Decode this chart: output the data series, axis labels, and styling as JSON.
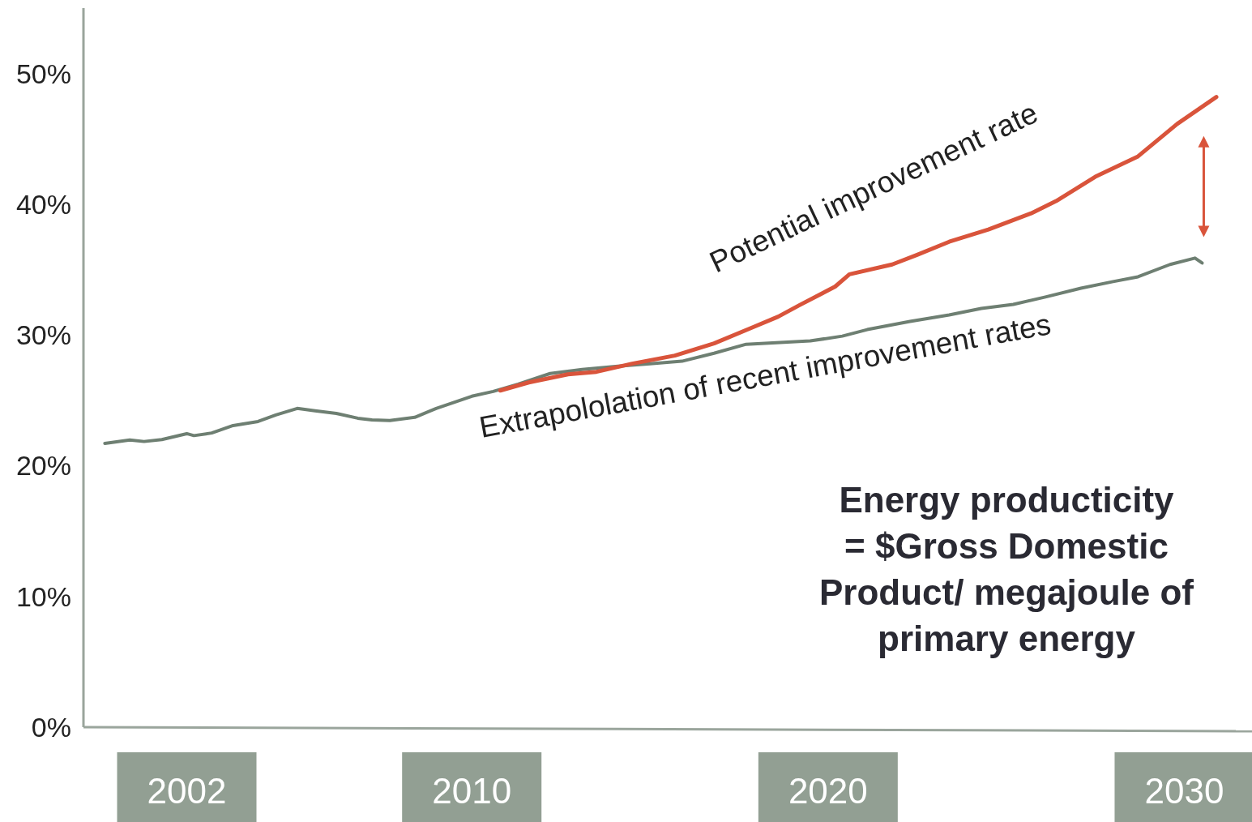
{
  "chart_data": {
    "type": "line",
    "xlim": [
      1999.1,
      2031.9
    ],
    "ylim": [
      0,
      55
    ],
    "xticks": [
      2002,
      2010,
      2020,
      2030
    ],
    "yticks": [
      {
        "value": 0,
        "label": "0%"
      },
      {
        "value": 10,
        "label": "10%"
      },
      {
        "value": 20,
        "label": "20%"
      },
      {
        "value": 30,
        "label": "30%"
      },
      {
        "value": 40,
        "label": "40%"
      },
      {
        "value": 50,
        "label": "50%"
      }
    ],
    "grid": false,
    "marker": "none",
    "line_style": "solid",
    "annotations": [
      "Energy producticity\n= $Gross Domestic\nProduct/ megajoule of\nprimary energy"
    ],
    "series": [
      {
        "name": "Extrapololation of recent improvement rates",
        "color": "#6e7f72",
        "x": [
          1999.7,
          2000.4,
          2000.8,
          2001.3,
          2002.0,
          2002.2,
          2002.7,
          2003.3,
          2004.0,
          2004.5,
          2005.1,
          2005.6,
          2006.2,
          2006.8,
          2007.2,
          2007.7,
          2008.4,
          2009.0,
          2010.0,
          2010.6,
          2011.3,
          2012.2,
          2013.1,
          2014.1,
          2015.0,
          2015.9,
          2016.8,
          2017.7,
          2019.5,
          2020.4,
          2021.1,
          2022.3,
          2023.4,
          2024.3,
          2025.2,
          2026.1,
          2027.1,
          2028.0,
          2028.7,
          2029.6,
          2030.3,
          2030.5
        ],
        "values": [
          21.7,
          21.96,
          21.85,
          22.0,
          22.45,
          22.3,
          22.5,
          23.07,
          23.38,
          23.88,
          24.38,
          24.2,
          24.0,
          23.63,
          23.5,
          23.45,
          23.7,
          24.38,
          25.31,
          25.68,
          26.24,
          27.05,
          27.36,
          27.61,
          27.8,
          27.99,
          28.6,
          29.29,
          29.54,
          29.91,
          30.41,
          31.03,
          31.53,
          32.03,
          32.34,
          32.9,
          33.58,
          34.08,
          34.45,
          35.39,
          35.88,
          35.5
        ]
      },
      {
        "name": "Potential improvement rate",
        "color": "#d9543b",
        "x": [
          2010.8,
          2011.6,
          2012.7,
          2013.5,
          2014.5,
          2015.7,
          2016.8,
          2017.9,
          2018.6,
          2019.2,
          2020.2,
          2020.6,
          2021.8,
          2022.5,
          2023.4,
          2024.5,
          2025.7,
          2026.4,
          2027.5,
          2028.7,
          2029.8,
          2030.9
        ],
        "values": [
          25.75,
          26.37,
          26.99,
          27.18,
          27.8,
          28.42,
          29.35,
          30.6,
          31.4,
          32.28,
          33.7,
          34.64,
          35.39,
          36.13,
          37.13,
          38.06,
          39.3,
          40.24,
          42.1,
          43.66,
          46.14,
          48.2
        ]
      }
    ]
  }
}
